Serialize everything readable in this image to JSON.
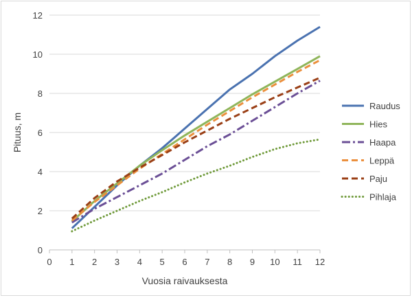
{
  "chart_data": {
    "type": "line",
    "xlabel": "Vuosia raivauksesta",
    "ylabel": "Pituus, m",
    "xlim": [
      0,
      12
    ],
    "ylim": [
      0,
      12
    ],
    "x_ticks": [
      0,
      1,
      2,
      3,
      4,
      5,
      6,
      7,
      8,
      9,
      10,
      11,
      12
    ],
    "y_ticks": [
      0,
      2,
      4,
      6,
      8,
      10,
      12
    ],
    "grid": "horizontal",
    "legend_position": "right",
    "x": [
      1,
      2,
      3,
      4,
      5,
      6,
      7,
      8,
      9,
      10,
      11,
      12
    ],
    "series": [
      {
        "name": "Raudus",
        "color": "#4a72b0",
        "dash": "solid",
        "values": [
          1.1,
          2.2,
          3.3,
          4.3,
          5.2,
          6.2,
          7.2,
          8.2,
          9.0,
          9.9,
          10.7,
          11.4
        ]
      },
      {
        "name": "Hies",
        "color": "#8fb55a",
        "dash": "solid",
        "values": [
          1.45,
          2.5,
          3.4,
          4.3,
          5.1,
          5.85,
          6.55,
          7.25,
          7.95,
          8.6,
          9.25,
          9.9
        ]
      },
      {
        "name": "Haapa",
        "color": "#6b4f96",
        "dash": "dashdot",
        "values": [
          1.4,
          2.1,
          2.7,
          3.3,
          3.9,
          4.6,
          5.3,
          5.9,
          6.6,
          7.3,
          8.0,
          8.65
        ]
      },
      {
        "name": "Leppä",
        "color": "#eb8f3d",
        "dash": "dash",
        "values": [
          1.5,
          2.45,
          3.3,
          4.15,
          4.9,
          5.65,
          6.4,
          7.1,
          7.8,
          8.45,
          9.1,
          9.7
        ]
      },
      {
        "name": "Paju",
        "color": "#9a3f16",
        "dash": "dash",
        "values": [
          1.6,
          2.65,
          3.5,
          4.2,
          4.85,
          5.5,
          6.1,
          6.7,
          7.25,
          7.8,
          8.3,
          8.8
        ]
      },
      {
        "name": "Pihlaja",
        "color": "#6f9a3a",
        "dash": "dot",
        "values": [
          0.95,
          1.5,
          2.0,
          2.5,
          2.95,
          3.45,
          3.9,
          4.3,
          4.75,
          5.15,
          5.45,
          5.65
        ]
      }
    ]
  }
}
